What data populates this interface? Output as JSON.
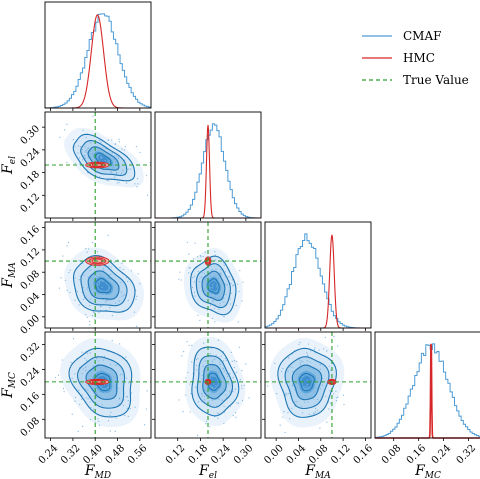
{
  "chart_data": {
    "type": "corner",
    "title": "",
    "variables": [
      {
        "symbol": "F",
        "sub": "MD",
        "range": [
          0.22,
          0.6
        ],
        "ticks": [
          0.24,
          0.32,
          0.4,
          0.48,
          0.56
        ],
        "tick_labels": [
          "0.24",
          "0.32",
          "0.40",
          "0.48",
          "0.56"
        ],
        "true_value": 0.4
      },
      {
        "symbol": "F",
        "sub": "el",
        "range": [
          0.06,
          0.34
        ],
        "ticks": [
          0.12,
          0.18,
          0.24,
          0.3
        ],
        "tick_labels": [
          "0.12",
          "0.18",
          "0.24",
          "0.30"
        ],
        "true_value": 0.2
      },
      {
        "symbol": "F",
        "sub": "MA",
        "range": [
          -0.02,
          0.17
        ],
        "ticks": [
          0.0,
          0.04,
          0.08,
          0.12,
          0.16
        ],
        "tick_labels": [
          "0.00",
          "0.04",
          "0.08",
          "0.12",
          "0.16"
        ],
        "true_value": 0.1
      },
      {
        "symbol": "F",
        "sub": "MC",
        "range": [
          0.02,
          0.36
        ],
        "ticks": [
          0.08,
          0.16,
          0.24,
          0.32
        ],
        "tick_labels": [
          "0.08",
          "0.16",
          "0.24",
          "0.32"
        ],
        "true_value": 0.2
      }
    ],
    "series": [
      {
        "name": "CMAF",
        "color": "#4c9bd6",
        "means": [
          0.428,
          0.215,
          0.055,
          0.2
        ],
        "sds": [
          0.055,
          0.03,
          0.025,
          0.055
        ],
        "correlations": {
          "1-0": -0.55,
          "2-0": -0.25,
          "2-1": -0.15,
          "3-0": -0.2,
          "3-1": -0.1,
          "3-2": 0.0
        }
      },
      {
        "name": "HMC",
        "color": "#d62728",
        "means": [
          0.408,
          0.2,
          0.1,
          0.2
        ],
        "sds": [
          0.022,
          0.004,
          0.004,
          0.0015
        ]
      },
      {
        "name": "True Value",
        "color": "#2ca02c"
      }
    ],
    "legend": {
      "placement": "top-right"
    },
    "grid": false
  }
}
